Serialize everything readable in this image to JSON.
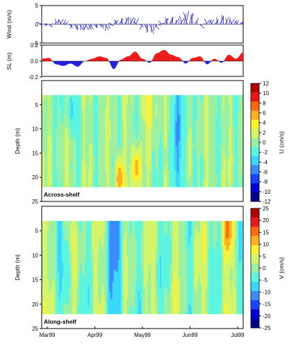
{
  "chart_data": [
    {
      "type": "line",
      "panel": "wind",
      "ylabel": "Wind (m/s)",
      "ylim": [
        -5,
        5
      ],
      "yticks": [
        "5",
        "0",
        "-5"
      ],
      "x": [
        0,
        5,
        10,
        15,
        20,
        25,
        30,
        35,
        40,
        45,
        50,
        55,
        60,
        65,
        70,
        75,
        80,
        85,
        90,
        95,
        100,
        105,
        110,
        115,
        120,
        125,
        130,
        135,
        140
      ],
      "values": [
        0.5,
        -0.8,
        1.5,
        1.2,
        -1.0,
        -1.5,
        -1.5,
        -1.2,
        -0.5,
        -1.8,
        1.0,
        1.5,
        2.0,
        1.5,
        -1.5,
        -2.5,
        -1.0,
        1.5,
        2.0,
        1.0,
        3.5,
        2.5,
        -1.0,
        1.5,
        1.0,
        2.5,
        1.5,
        1.0,
        0.5
      ]
    },
    {
      "type": "area",
      "panel": "sea-level",
      "ylabel": "SL (m)",
      "ylim": [
        -0.2,
        0.2
      ],
      "yticks": [
        "0.2",
        "0.0",
        "-0.2"
      ],
      "x": [
        0,
        5,
        10,
        15,
        20,
        25,
        30,
        35,
        40,
        45,
        50,
        55,
        60,
        65,
        70,
        75,
        80,
        85,
        90,
        95,
        100,
        105,
        110,
        115,
        120,
        125,
        130,
        135,
        140
      ],
      "values": [
        0.03,
        0.04,
        -0.04,
        -0.06,
        -0.03,
        -0.07,
        0.0,
        0.03,
        0.06,
        0.04,
        -0.1,
        0.02,
        0.06,
        0.12,
        0.03,
        -0.02,
        0.1,
        0.14,
        0.08,
        0.05,
        -0.03,
        0.04,
        0.06,
        -0.04,
        0.03,
        -0.02,
        0.08,
        0.03,
        0.11
      ]
    },
    {
      "type": "heatmap",
      "panel": "across-shelf",
      "label": "Across-shelf",
      "ylabel": "Depth (m)",
      "ylim": [
        25,
        0
      ],
      "yticks": [
        "5",
        "10",
        "15",
        "20",
        "25"
      ],
      "colorbar_label": "U (cm/s)",
      "colorbar_ticks": [
        "12",
        "10",
        "8",
        "6",
        "4",
        "2",
        "0",
        "-2",
        "-4",
        "-6",
        "-8",
        "-10",
        "-12"
      ]
    },
    {
      "type": "heatmap",
      "panel": "along-shelf",
      "label": "Along-shelf",
      "ylabel": "Depth (m)",
      "ylim": [
        25,
        0
      ],
      "yticks": [
        "5",
        "10",
        "15",
        "20",
        "25"
      ],
      "xticks": [
        "Mar99",
        "Apr99",
        "May99",
        "Jun99",
        "Jul99"
      ],
      "colorbar_label": "V (cm/s)",
      "colorbar_ticks": [
        "25",
        "20",
        "15",
        "10",
        "5",
        "0",
        "-5",
        "-10",
        "-15",
        "-20",
        "-25"
      ]
    }
  ],
  "colors": {
    "positive": "#ee1c1c",
    "negative": "#2222dd",
    "palette": [
      "#00008f",
      "#0000d8",
      "#1a44ff",
      "#3a8cff",
      "#3ad8ff",
      "#5cf5e0",
      "#9cf0a0",
      "#d4f56a",
      "#fff030",
      "#ffb020",
      "#ff6a10",
      "#e81818",
      "#b00000"
    ]
  }
}
